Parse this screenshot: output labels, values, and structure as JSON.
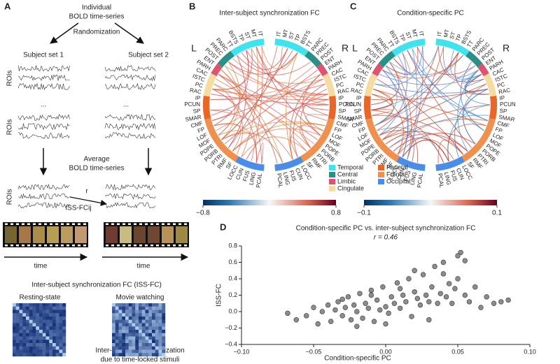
{
  "panel_a": {
    "label": "A",
    "title_lines": [
      "Individual",
      "BOLD time-series"
    ],
    "randomization": "Randomization",
    "subject_sets": [
      "Subject set 1",
      "Subject set 2"
    ],
    "rois_label": "ROIs",
    "ellipsis": "...",
    "average_lines": [
      "Average",
      "BOLD time-series"
    ],
    "r": "r",
    "iss_fcij": "ISS-FCij",
    "time": "time",
    "iss_fc_title": "Inter-subject synchronization FC (ISS-FC)",
    "conditions": [
      "Resting-state",
      "Movie watching"
    ],
    "note_lines": [
      "Inter-subject synchronization",
      "due to time-locked stimuli"
    ]
  },
  "connectome": {
    "hemispheres": [
      "L",
      "R"
    ],
    "groups": [
      {
        "name": "Temporal",
        "color": "#3fe3ef",
        "rois": [
          "IT",
          "MT",
          "ST",
          "TP",
          "BSTS",
          "TT"
        ]
      },
      {
        "name": "Central",
        "color": "#2a8f86",
        "rois": [
          "PARC",
          "PREC",
          "POST"
        ]
      },
      {
        "name": "Limbic",
        "color": "#de5470",
        "rois": [
          "ENT",
          "PARH"
        ]
      },
      {
        "name": "Cingulate",
        "color": "#f7dca2",
        "rois": [
          "CAC",
          "ISTC",
          "PC",
          "RAC"
        ]
      },
      {
        "name": "Parietal",
        "color": "#e8662a",
        "rois": [
          "IP",
          "PCUN",
          "SP",
          "SMAR"
        ]
      },
      {
        "name": "Frontal",
        "color": "#f0904e",
        "rois": [
          "CMF",
          "FP",
          "LOF",
          "MOF",
          "POPE",
          "PORB",
          "PTRI",
          "RMF",
          "SF"
        ]
      },
      {
        "name": "Occipital",
        "color": "#4a8de8",
        "rois": [
          "LOCC",
          "CUN",
          "FUS",
          "LING",
          "PCAL"
        ]
      }
    ],
    "panels": [
      {
        "label": "B",
        "title": "Inter-subject synchronization FC",
        "colorbar": {
          "lim": [
            -0.8,
            0.8
          ],
          "ticks": [
            {
              "value": -0.8,
              "label": "−0.8"
            },
            0.8
          ]
        }
      },
      {
        "label": "C",
        "title": "Condition-specific PC",
        "colorbar": {
          "lim": [
            -0.1,
            0.1
          ],
          "ticks": [
            {
              "value": -0.1,
              "label": "−0.1"
            },
            0.1
          ]
        }
      }
    ]
  },
  "chart_data": {
    "type": "scatter",
    "label": "D",
    "title": "Condition-specific PC vs. inter-subject synchronization FC",
    "annotation": "r = 0.46",
    "xlabel": "Condition-specific PC",
    "ylabel": "ISS-FC",
    "color": "#8c8c8c",
    "x": [
      -0.068,
      -0.062,
      -0.055,
      -0.05,
      -0.047,
      -0.044,
      -0.04,
      -0.038,
      -0.035,
      -0.033,
      -0.03,
      -0.028,
      -0.026,
      -0.024,
      -0.022,
      -0.02,
      -0.018,
      -0.016,
      -0.014,
      -0.012,
      -0.01,
      -0.008,
      -0.006,
      -0.004,
      -0.002,
      0,
      0.002,
      0.004,
      0.006,
      0.008,
      0.01,
      0.012,
      0.014,
      0.016,
      0.018,
      0.02,
      0.022,
      0.024,
      0.026,
      0.028,
      0.03,
      0.032,
      0.034,
      0.036,
      0.038,
      0.04,
      0.042,
      0.044,
      0.046,
      0.048,
      0.05,
      0.052,
      0.055,
      0.058,
      0.062,
      0.066,
      0.07,
      0.075,
      0.08,
      0.085,
      -0.03,
      -0.02,
      -0.01,
      0,
      0.01,
      0.02,
      0.03,
      0.04,
      0.05,
      0.055
    ],
    "y": [
      -0.02,
      -0.1,
      -0.05,
      0.05,
      -0.15,
      0.0,
      0.08,
      -0.12,
      0.02,
      0.12,
      -0.05,
      0.05,
      0.18,
      -0.1,
      0.08,
      0.0,
      0.22,
      -0.08,
      0.1,
      0.04,
      0.26,
      -0.12,
      0.14,
      0.02,
      0.3,
      0.06,
      -0.02,
      0.18,
      0.1,
      0.35,
      0.04,
      0.2,
      0.12,
      0.4,
      -0.06,
      0.24,
      0.16,
      0.08,
      0.45,
      0.2,
      0.12,
      0.3,
      0.55,
      0.1,
      0.22,
      0.6,
      0.18,
      0.34,
      0.1,
      0.28,
      0.4,
      0.72,
      0.2,
      0.12,
      0.3,
      0.05,
      0.18,
      0.1,
      0.12,
      0.14,
      0.15,
      -0.18,
      0.2,
      -0.15,
      0.28,
      0.5,
      -0.1,
      0.46,
      0.68,
      0.62
    ],
    "xlim": [
      -0.1,
      0.1
    ],
    "ylim": [
      -0.4,
      0.8
    ],
    "xticks": [
      {
        "value": -0.1,
        "label": "−0.10"
      },
      {
        "value": -0.05,
        "label": "−0.05"
      },
      {
        "value": 0,
        "label": "0.00"
      },
      {
        "value": 0.05,
        "label": "0.05"
      },
      {
        "value": 0.1,
        "label": "0.10"
      }
    ],
    "yticks": [
      {
        "value": -0.4,
        "label": "−0.4"
      },
      {
        "value": -0.2,
        "label": "−0.2"
      },
      {
        "value": 0,
        "label": "0.0"
      },
      0.2,
      0.4,
      0.6,
      0.8
    ]
  }
}
